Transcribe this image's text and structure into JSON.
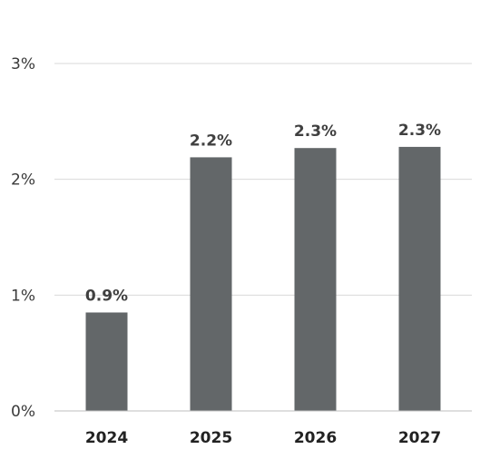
{
  "chart_data": {
    "type": "bar",
    "categories": [
      "2024",
      "2025",
      "2026",
      "2027"
    ],
    "values": [
      0.85,
      2.19,
      2.27,
      2.28
    ],
    "data_labels": [
      "0.9%",
      "2.2%",
      "2.3%",
      "2.3%"
    ],
    "ylim": [
      0,
      3
    ],
    "yticks": [
      0,
      1,
      2,
      3
    ],
    "ytick_labels": [
      "0%",
      "1%",
      "2%",
      "3%"
    ],
    "grid": true,
    "bar_color": "#636769"
  }
}
